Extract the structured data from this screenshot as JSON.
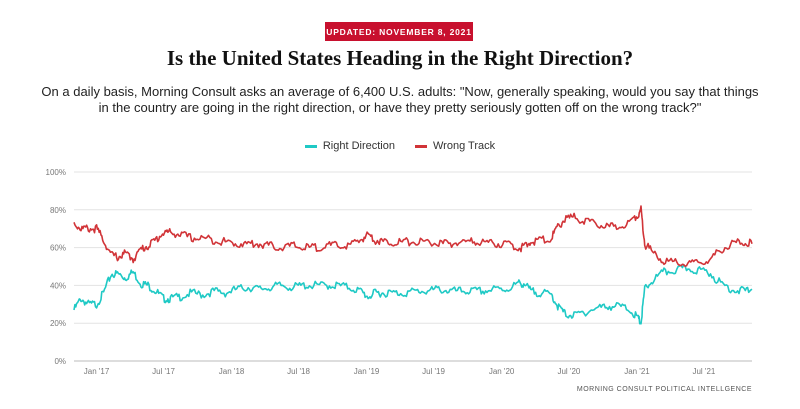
{
  "badge": "UPDATED: NOVEMBER 8, 2021",
  "title": "Is the United States Heading in the Right Direction?",
  "subtitle": "On a daily basis, Morning Consult asks an average of 6,400 U.S. adults: \"Now, generally speaking, would you say that things in the country are going in the right direction, or have they pretty seriously gotten off on the wrong track?\"",
  "source": "MORNING CONSULT POLITICAL INTELLGENCE",
  "colors": {
    "right": "#1fc9c5",
    "wrong": "#d13438",
    "badge": "#c8102e",
    "grid": "#e3e3e3"
  },
  "chart_data": {
    "type": "line",
    "title": "Is the United States Heading in the Right Direction?",
    "xlabel": "",
    "ylabel": "",
    "ylim": [
      0,
      100
    ],
    "xlim": [
      "2016-11-01",
      "2021-11-08"
    ],
    "y_ticks": [
      0,
      20,
      40,
      60,
      80,
      100
    ],
    "y_tick_labels": [
      "0%",
      "20%",
      "40%",
      "60%",
      "80%",
      "100%"
    ],
    "x_ticks": [
      "2017-01-01",
      "2017-07-01",
      "2018-01-01",
      "2018-07-01",
      "2019-01-01",
      "2019-07-01",
      "2020-01-01",
      "2020-07-01",
      "2021-01-01",
      "2021-07-01"
    ],
    "x_tick_labels": [
      "Jan '17",
      "Jul '17",
      "Jan '18",
      "Jul '18",
      "Jan '19",
      "Jul '19",
      "Jan '20",
      "Jul '20",
      "Jan '21",
      "Jul '21"
    ],
    "grid": true,
    "legend_position": "top-center",
    "series": [
      {
        "name": "Right Direction",
        "color": "#1fc9c5",
        "points": [
          [
            "2016-11-01",
            27
          ],
          [
            "2016-11-20",
            33
          ],
          [
            "2016-12-10",
            30
          ],
          [
            "2017-01-01",
            30
          ],
          [
            "2017-01-20",
            36
          ],
          [
            "2017-02-10",
            46
          ],
          [
            "2017-03-01",
            46
          ],
          [
            "2017-03-20",
            44
          ],
          [
            "2017-04-10",
            47
          ],
          [
            "2017-05-01",
            41
          ],
          [
            "2017-05-20",
            40
          ],
          [
            "2017-06-10",
            37
          ],
          [
            "2017-07-01",
            33
          ],
          [
            "2017-07-20",
            33
          ],
          [
            "2017-08-15",
            34
          ],
          [
            "2017-09-15",
            36
          ],
          [
            "2017-10-15",
            35
          ],
          [
            "2017-11-15",
            37
          ],
          [
            "2017-12-15",
            36
          ],
          [
            "2018-01-15",
            38
          ],
          [
            "2018-02-15",
            39
          ],
          [
            "2018-03-15",
            38
          ],
          [
            "2018-04-15",
            39
          ],
          [
            "2018-05-15",
            40
          ],
          [
            "2018-06-15",
            39
          ],
          [
            "2018-07-15",
            40
          ],
          [
            "2018-08-15",
            40
          ],
          [
            "2018-09-15",
            40
          ],
          [
            "2018-10-15",
            40
          ],
          [
            "2018-11-15",
            39
          ],
          [
            "2018-12-15",
            37
          ],
          [
            "2019-01-05",
            34
          ],
          [
            "2019-01-25",
            36
          ],
          [
            "2019-02-15",
            36
          ],
          [
            "2019-03-15",
            36
          ],
          [
            "2019-04-15",
            36
          ],
          [
            "2019-05-15",
            37
          ],
          [
            "2019-06-15",
            37
          ],
          [
            "2019-07-15",
            38
          ],
          [
            "2019-08-15",
            37
          ],
          [
            "2019-09-15",
            37
          ],
          [
            "2019-10-15",
            37
          ],
          [
            "2019-11-15",
            37
          ],
          [
            "2019-12-15",
            38
          ],
          [
            "2020-01-15",
            38
          ],
          [
            "2020-02-15",
            41
          ],
          [
            "2020-03-01",
            41
          ],
          [
            "2020-03-20",
            37
          ],
          [
            "2020-04-15",
            36
          ],
          [
            "2020-05-15",
            35
          ],
          [
            "2020-06-01",
            29
          ],
          [
            "2020-06-20",
            25
          ],
          [
            "2020-07-15",
            24
          ],
          [
            "2020-08-15",
            26
          ],
          [
            "2020-09-15",
            28
          ],
          [
            "2020-10-15",
            29
          ],
          [
            "2020-11-15",
            29
          ],
          [
            "2020-12-15",
            27
          ],
          [
            "2021-01-05",
            22
          ],
          [
            "2021-01-12",
            20
          ],
          [
            "2021-01-22",
            38
          ],
          [
            "2021-02-15",
            43
          ],
          [
            "2021-03-15",
            47
          ],
          [
            "2021-04-15",
            48
          ],
          [
            "2021-05-15",
            49
          ],
          [
            "2021-06-15",
            48
          ],
          [
            "2021-07-15",
            47
          ],
          [
            "2021-08-15",
            41
          ],
          [
            "2021-09-15",
            38
          ],
          [
            "2021-10-15",
            37
          ],
          [
            "2021-11-08",
            38
          ]
        ]
      },
      {
        "name": "Wrong Track",
        "color": "#d13438",
        "points": [
          [
            "2016-11-01",
            73
          ],
          [
            "2016-11-20",
            70
          ],
          [
            "2016-12-10",
            70
          ],
          [
            "2017-01-01",
            70
          ],
          [
            "2017-01-20",
            64
          ],
          [
            "2017-02-10",
            56
          ],
          [
            "2017-03-01",
            55
          ],
          [
            "2017-03-20",
            57
          ],
          [
            "2017-04-10",
            54
          ],
          [
            "2017-05-01",
            59
          ],
          [
            "2017-05-20",
            61
          ],
          [
            "2017-06-10",
            64
          ],
          [
            "2017-07-01",
            68
          ],
          [
            "2017-07-20",
            68
          ],
          [
            "2017-08-15",
            67
          ],
          [
            "2017-09-15",
            65
          ],
          [
            "2017-10-15",
            65
          ],
          [
            "2017-11-15",
            64
          ],
          [
            "2017-12-15",
            63
          ],
          [
            "2018-01-15",
            62
          ],
          [
            "2018-02-15",
            62
          ],
          [
            "2018-03-15",
            62
          ],
          [
            "2018-04-15",
            61
          ],
          [
            "2018-05-15",
            60
          ],
          [
            "2018-06-15",
            61
          ],
          [
            "2018-07-15",
            60
          ],
          [
            "2018-08-15",
            60
          ],
          [
            "2018-09-15",
            61
          ],
          [
            "2018-10-15",
            61
          ],
          [
            "2018-11-15",
            61
          ],
          [
            "2018-12-15",
            64
          ],
          [
            "2019-01-05",
            67
          ],
          [
            "2019-01-25",
            64
          ],
          [
            "2019-02-15",
            63
          ],
          [
            "2019-03-15",
            63
          ],
          [
            "2019-04-15",
            63
          ],
          [
            "2019-05-15",
            63
          ],
          [
            "2019-06-15",
            63
          ],
          [
            "2019-07-15",
            62
          ],
          [
            "2019-08-15",
            62
          ],
          [
            "2019-09-15",
            63
          ],
          [
            "2019-10-15",
            63
          ],
          [
            "2019-11-15",
            63
          ],
          [
            "2019-12-15",
            62
          ],
          [
            "2020-01-15",
            62
          ],
          [
            "2020-02-15",
            60
          ],
          [
            "2020-03-01",
            60
          ],
          [
            "2020-03-20",
            63
          ],
          [
            "2020-04-15",
            64
          ],
          [
            "2020-05-15",
            65
          ],
          [
            "2020-06-01",
            71
          ],
          [
            "2020-06-20",
            75
          ],
          [
            "2020-07-15",
            76
          ],
          [
            "2020-08-15",
            74
          ],
          [
            "2020-09-15",
            72
          ],
          [
            "2020-10-15",
            71
          ],
          [
            "2020-11-15",
            71
          ],
          [
            "2020-12-15",
            74
          ],
          [
            "2021-01-05",
            78
          ],
          [
            "2021-01-12",
            80
          ],
          [
            "2021-01-22",
            62
          ],
          [
            "2021-02-15",
            57
          ],
          [
            "2021-03-15",
            53
          ],
          [
            "2021-04-15",
            52
          ],
          [
            "2021-05-15",
            51
          ],
          [
            "2021-06-15",
            52
          ],
          [
            "2021-07-15",
            53
          ],
          [
            "2021-08-15",
            59
          ],
          [
            "2021-09-15",
            62
          ],
          [
            "2021-10-15",
            63
          ],
          [
            "2021-11-08",
            62
          ]
        ]
      }
    ]
  }
}
